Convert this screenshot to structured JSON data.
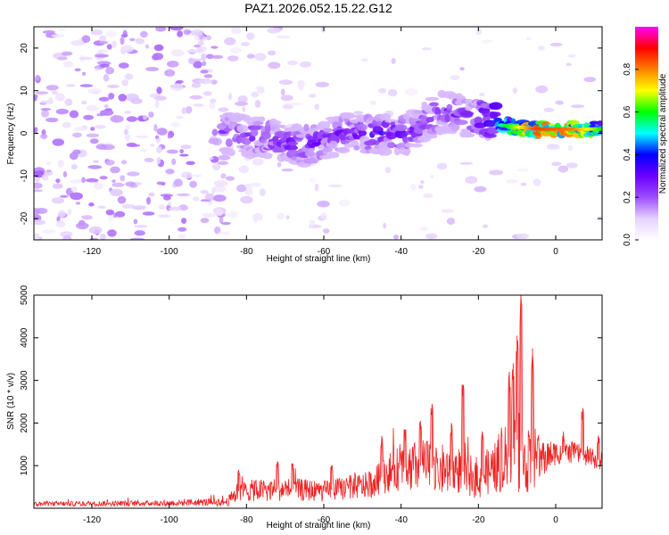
{
  "figure": {
    "title": "PAZ1.2026.052.15.22.G12"
  },
  "chart_data": [
    {
      "type": "heatmap",
      "title": "PAZ1.2026.052.15.22.G12",
      "xlabel": "Height of straight line (km)",
      "ylabel": "Frequency (Hz)",
      "xlim": [
        -135,
        12
      ],
      "ylim": [
        -25,
        25
      ],
      "xticks": [
        -120,
        -100,
        -80,
        -60,
        -40,
        -20,
        0
      ],
      "yticks": [
        -20,
        -10,
        0,
        10,
        20
      ],
      "colorbar": {
        "label": "Normalized spectral amplitude",
        "range": [
          0,
          1
        ],
        "ticks": [
          "0.0",
          "0.2",
          "0.4",
          "0.6",
          "0.8"
        ],
        "colors": [
          "#ffffff",
          "#e6d2ff",
          "#9b4dff",
          "#6a00ff",
          "#0000ff",
          "#00ffff",
          "#00ff00",
          "#ffff00",
          "#ff8000",
          "#ff0000",
          "#ff00ff"
        ]
      },
      "ridge": {
        "description": "frequency of main signal vs height (km, Hz)",
        "x": [
          -85,
          -75,
          -65,
          -55,
          -45,
          -38,
          -30,
          -22,
          -15,
          -5,
          5,
          12
        ],
        "y": [
          0,
          -1,
          -3,
          0,
          0,
          0,
          5,
          4,
          2,
          1,
          1,
          1
        ],
        "amplitude": [
          0.3,
          0.3,
          0.32,
          0.3,
          0.35,
          0.3,
          0.3,
          0.28,
          0.5,
          0.85,
          0.8,
          0.6
        ]
      }
    },
    {
      "type": "line",
      "xlabel": "Height of straight line (km)",
      "ylabel": "SNR (10 * v/v)",
      "xlim": [
        -135,
        12
      ],
      "ylim": [
        0,
        5000
      ],
      "xticks": [
        -120,
        -100,
        -80,
        -60,
        -40,
        -20,
        0
      ],
      "yticks": [
        1000,
        2000,
        3000,
        4000,
        5000
      ],
      "color": "#ee2222",
      "envelope": {
        "description": "approximate SNR level by height (km -> value)",
        "x": [
          -135,
          -100,
          -85,
          -82,
          -70,
          -60,
          -48,
          -42,
          -35,
          -30,
          -25,
          -20,
          -15,
          -12,
          -10,
          -8,
          -5,
          0,
          5,
          12
        ],
        "base": [
          100,
          120,
          150,
          400,
          450,
          400,
          550,
          900,
          1000,
          900,
          900,
          700,
          1000,
          1200,
          1600,
          1100,
          1100,
          1300,
          1300,
          1100
        ],
        "amp": [
          80,
          100,
          150,
          350,
          400,
          350,
          450,
          700,
          900,
          900,
          800,
          700,
          900,
          1300,
          1800,
          1200,
          800,
          400,
          350,
          350
        ]
      },
      "peaks": [
        {
          "x": -82,
          "y": 900
        },
        {
          "x": -72,
          "y": 1100
        },
        {
          "x": -68,
          "y": 1050
        },
        {
          "x": -58,
          "y": 1000
        },
        {
          "x": -45,
          "y": 1700
        },
        {
          "x": -39,
          "y": 1850
        },
        {
          "x": -35,
          "y": 2050
        },
        {
          "x": -32,
          "y": 2450
        },
        {
          "x": -27,
          "y": 2000
        },
        {
          "x": -24,
          "y": 2900
        },
        {
          "x": -19,
          "y": 1800
        },
        {
          "x": -12,
          "y": 3200
        },
        {
          "x": -11,
          "y": 3400
        },
        {
          "x": -10,
          "y": 4050
        },
        {
          "x": -9,
          "y": 5000
        },
        {
          "x": -6,
          "y": 3750
        },
        {
          "x": 2,
          "y": 1800
        },
        {
          "x": 7,
          "y": 2350
        },
        {
          "x": 11,
          "y": 1700
        }
      ]
    }
  ]
}
